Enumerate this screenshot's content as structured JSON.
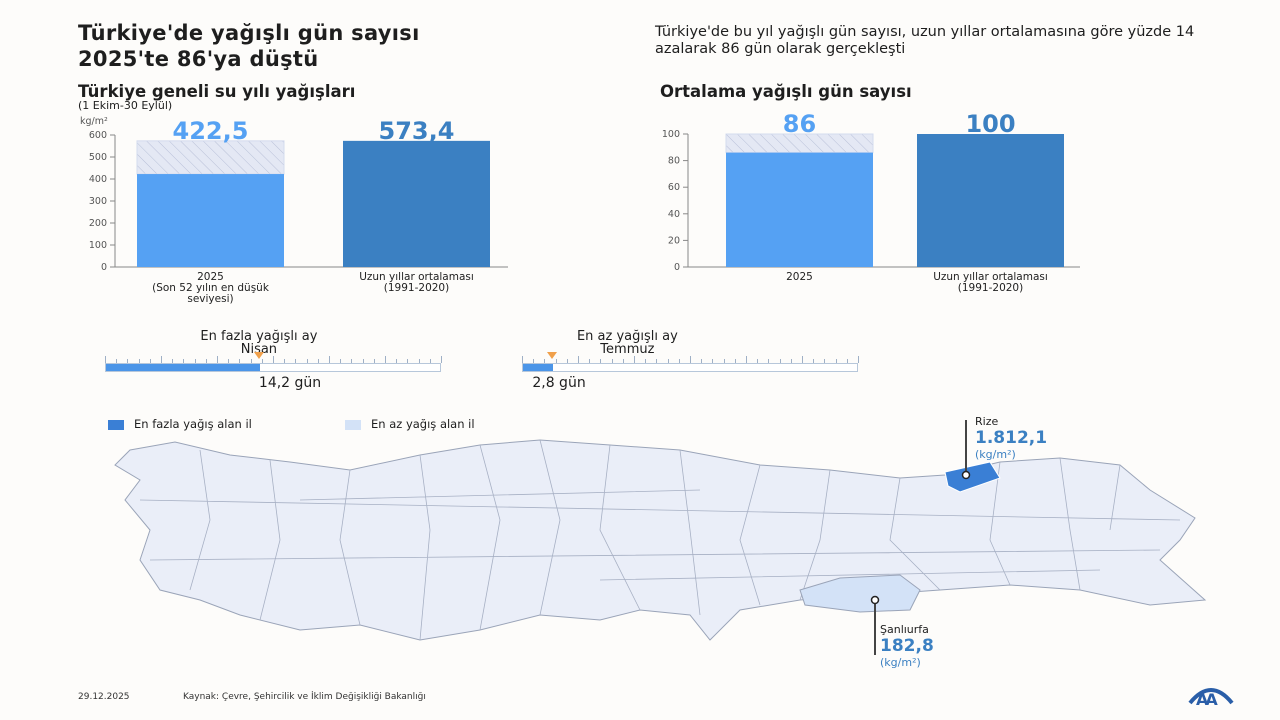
{
  "header": {
    "title_line1": "Türkiye'de yağışlı gün sayısı",
    "title_line2": "2025'te 86'ya düştü",
    "lede": "Türkiye'de bu yıl yağışlı gün sayısı, uzun yıllar ortalamasına göre yüzde 14 azalarak 86 gün olarak gerçekleşti"
  },
  "chart_data": [
    {
      "type": "bar",
      "title": "Türkiye geneli su yılı yağışları",
      "subtitle": "(1 Ekim-30 Eylül)",
      "ylabel": "kg/m²",
      "ylim": [
        0,
        600
      ],
      "yticks": [
        "0",
        "100",
        "200",
        "300",
        "400",
        "500",
        "600"
      ],
      "categories": [
        [
          "2025",
          "(Son 52 yılın en düşük",
          "seviyesi)"
        ],
        [
          "Uzun yıllar ortalaması",
          "(1991-2020)"
        ]
      ],
      "values": [
        422.5,
        573.4
      ],
      "value_labels": [
        "422,5",
        "573,4"
      ],
      "colors": [
        "#55a1f3",
        "#3b80c2"
      ],
      "hatch_to_reference": true,
      "grid": false
    },
    {
      "type": "bar",
      "title": "Ortalama yağışlı gün sayısı",
      "ylim": [
        0,
        100
      ],
      "yticks": [
        "0",
        "20",
        "40",
        "60",
        "80",
        "100"
      ],
      "categories": [
        [
          "2025"
        ],
        [
          "Uzun yıllar ortalaması",
          "(1991-2020)"
        ]
      ],
      "values": [
        86,
        100
      ],
      "value_labels": [
        "86",
        "100"
      ],
      "colors": [
        "#55a1f3",
        "#3b80c2"
      ],
      "hatch_to_reference": true,
      "grid": false
    }
  ],
  "months": [
    {
      "heading": "En fazla yağışlı ay",
      "month": "Nisan",
      "value": 14.2,
      "value_label": "14,2 gün",
      "max": 31
    },
    {
      "heading": "En az yağışlı ay",
      "month": "Temmuz",
      "value": 2.8,
      "value_label": "2,8 gün",
      "max": 31
    }
  ],
  "legend": [
    {
      "label": "En fazla yağış alan il",
      "color": "#3a7fd5"
    },
    {
      "label": "En az yağış alan il",
      "color": "#d3e2f7"
    }
  ],
  "map": {
    "base_color": "#eaeef8",
    "max_province": {
      "name": "Rize",
      "value": "1.812,1",
      "unit": "(kg/m²)"
    },
    "min_province": {
      "name": "Şanlıurfa",
      "value": "182,8",
      "unit": "(kg/m²)"
    }
  },
  "footer": {
    "date": "29.12.2025",
    "source": "Kaynak: Çevre, Şehircilik ve İklim Değişikliği Bakanlığı",
    "logo_text": "AA"
  },
  "accent": "#3b80c2"
}
